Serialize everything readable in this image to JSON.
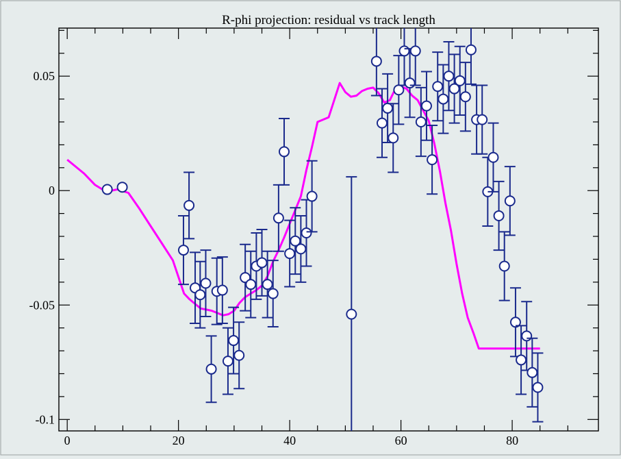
{
  "chart_data": {
    "type": "scatter",
    "title": "R-phi projection: residual vs track length",
    "xlabel": "",
    "ylabel": "",
    "xlim": [
      -1.5,
      95.5
    ],
    "ylim": [
      -0.105,
      0.071
    ],
    "xticks": [
      0,
      20,
      40,
      60,
      80
    ],
    "xtick_labels": [
      "0",
      "20",
      "40",
      "60",
      "80"
    ],
    "yticks": [
      0.05,
      0,
      -0.05,
      -0.1
    ],
    "ytick_labels": [
      "0.05",
      "0",
      "-0.05",
      "-0.1"
    ],
    "grid": false,
    "legend": "none",
    "colors": {
      "points": "#1a2a8c",
      "marker_fill": "#ffffff",
      "fit_line": "#ff00ff",
      "background": "#e6ecec"
    },
    "series": [
      {
        "kind": "points_with_error_bars",
        "points": [
          {
            "x": 7.2,
            "y": 0.0005,
            "err": 0
          },
          {
            "x": 9.9,
            "y": 0.0015,
            "err": 0
          },
          {
            "x": 20.9,
            "y": -0.026,
            "err": 0.015
          },
          {
            "x": 21.9,
            "y": -0.0065,
            "err": 0.0145
          },
          {
            "x": 23.0,
            "y": -0.0425,
            "err": 0.0155
          },
          {
            "x": 23.9,
            "y": -0.0455,
            "err": 0.0145
          },
          {
            "x": 24.9,
            "y": -0.0405,
            "err": 0.0145
          },
          {
            "x": 25.9,
            "y": -0.078,
            "err": 0.0145
          },
          {
            "x": 26.9,
            "y": -0.044,
            "err": 0.0145
          },
          {
            "x": 27.9,
            "y": -0.0435,
            "err": 0.0145
          },
          {
            "x": 28.9,
            "y": -0.0745,
            "err": 0.0145
          },
          {
            "x": 29.9,
            "y": -0.0655,
            "err": 0.0145
          },
          {
            "x": 30.9,
            "y": -0.072,
            "err": 0.0145
          },
          {
            "x": 32.0,
            "y": -0.038,
            "err": 0.0145
          },
          {
            "x": 33.0,
            "y": -0.041,
            "err": 0.0145
          },
          {
            "x": 34.0,
            "y": -0.033,
            "err": 0.0145
          },
          {
            "x": 35.0,
            "y": -0.0315,
            "err": 0.0145
          },
          {
            "x": 36.0,
            "y": -0.041,
            "err": 0.0145
          },
          {
            "x": 37.0,
            "y": -0.045,
            "err": 0.0145
          },
          {
            "x": 38.0,
            "y": -0.012,
            "err": 0.0145
          },
          {
            "x": 39.0,
            "y": 0.017,
            "err": 0.0145
          },
          {
            "x": 40.0,
            "y": -0.0275,
            "err": 0.0145
          },
          {
            "x": 41.0,
            "y": -0.022,
            "err": 0.0145
          },
          {
            "x": 42.0,
            "y": -0.0255,
            "err": 0.0145
          },
          {
            "x": 43.0,
            "y": -0.0185,
            "err": 0.0145
          },
          {
            "x": 44.0,
            "y": -0.0025,
            "err": 0.0155
          },
          {
            "x": 51.1,
            "y": -0.054,
            "err": 0.06
          },
          {
            "x": 55.6,
            "y": 0.0565,
            "err": 0.015
          },
          {
            "x": 56.6,
            "y": 0.0295,
            "err": 0.015
          },
          {
            "x": 57.6,
            "y": 0.036,
            "err": 0.015
          },
          {
            "x": 58.6,
            "y": 0.023,
            "err": 0.015
          },
          {
            "x": 59.6,
            "y": 0.044,
            "err": 0.015
          },
          {
            "x": 60.6,
            "y": 0.061,
            "err": 0.015
          },
          {
            "x": 61.6,
            "y": 0.047,
            "err": 0.015
          },
          {
            "x": 62.6,
            "y": 0.061,
            "err": 0.015
          },
          {
            "x": 63.6,
            "y": 0.03,
            "err": 0.015
          },
          {
            "x": 64.6,
            "y": 0.037,
            "err": 0.015
          },
          {
            "x": 65.6,
            "y": 0.0135,
            "err": 0.015
          },
          {
            "x": 66.6,
            "y": 0.0455,
            "err": 0.015
          },
          {
            "x": 67.6,
            "y": 0.04,
            "err": 0.015
          },
          {
            "x": 68.6,
            "y": 0.05,
            "err": 0.015
          },
          {
            "x": 69.6,
            "y": 0.0445,
            "err": 0.015
          },
          {
            "x": 70.6,
            "y": 0.048,
            "err": 0.015
          },
          {
            "x": 71.6,
            "y": 0.041,
            "err": 0.015
          },
          {
            "x": 72.6,
            "y": 0.0615,
            "err": 0.015
          },
          {
            "x": 73.6,
            "y": 0.031,
            "err": 0.015
          },
          {
            "x": 74.6,
            "y": 0.031,
            "err": 0.015
          },
          {
            "x": 75.6,
            "y": -0.0005,
            "err": 0.015
          },
          {
            "x": 76.6,
            "y": 0.0145,
            "err": 0.015
          },
          {
            "x": 77.6,
            "y": -0.011,
            "err": 0.015
          },
          {
            "x": 78.6,
            "y": -0.033,
            "err": 0.015
          },
          {
            "x": 79.6,
            "y": -0.0045,
            "err": 0.015
          },
          {
            "x": 80.6,
            "y": -0.0575,
            "err": 0.015
          },
          {
            "x": 81.6,
            "y": -0.074,
            "err": 0.015
          },
          {
            "x": 82.6,
            "y": -0.0635,
            "err": 0.015
          },
          {
            "x": 83.6,
            "y": -0.0795,
            "err": 0.015
          },
          {
            "x": 84.6,
            "y": -0.086,
            "err": 0.015
          }
        ]
      },
      {
        "kind": "line",
        "x": [
          0,
          3,
          5,
          7,
          9,
          11,
          13,
          15,
          17,
          19,
          21,
          22,
          23,
          24,
          25,
          26,
          27,
          28,
          29,
          30,
          31,
          32,
          33,
          34,
          35,
          36,
          37,
          38,
          39,
          40,
          41,
          42,
          43,
          44,
          45,
          47,
          49,
          50,
          51,
          52,
          53,
          54,
          55,
          56,
          57,
          58,
          59,
          60,
          61,
          62,
          63,
          64,
          65,
          66,
          67,
          68,
          69,
          70,
          71,
          72,
          73,
          74,
          75,
          76,
          77,
          78,
          79,
          80,
          81,
          82,
          83,
          84,
          85
        ],
        "y": [
          0.0135,
          0.0075,
          0.0025,
          -0.0005,
          0.0005,
          -0.001,
          -0.008,
          -0.0155,
          -0.023,
          -0.0305,
          -0.045,
          -0.0475,
          -0.0495,
          -0.0515,
          -0.052,
          -0.0525,
          -0.0535,
          -0.0545,
          -0.054,
          -0.0525,
          -0.049,
          -0.0465,
          -0.045,
          -0.0435,
          -0.0415,
          -0.0375,
          -0.031,
          -0.026,
          -0.0205,
          -0.0145,
          -0.0085,
          -0.0025,
          0.009,
          0.019,
          0.03,
          0.032,
          0.047,
          0.043,
          0.041,
          0.0415,
          0.0435,
          0.0445,
          0.045,
          0.0425,
          0.0385,
          0.0395,
          0.0445,
          0.0455,
          0.0445,
          0.0415,
          0.0395,
          0.035,
          0.0305,
          0.0205,
          0.0085,
          -0.0055,
          -0.0175,
          -0.032,
          -0.045,
          -0.0555,
          -0.062,
          -0.069,
          -0.069,
          -0.069,
          -0.069,
          -0.069,
          -0.069,
          -0.069,
          -0.069,
          -0.069,
          -0.069,
          -0.069,
          -0.069
        ]
      }
    ]
  }
}
